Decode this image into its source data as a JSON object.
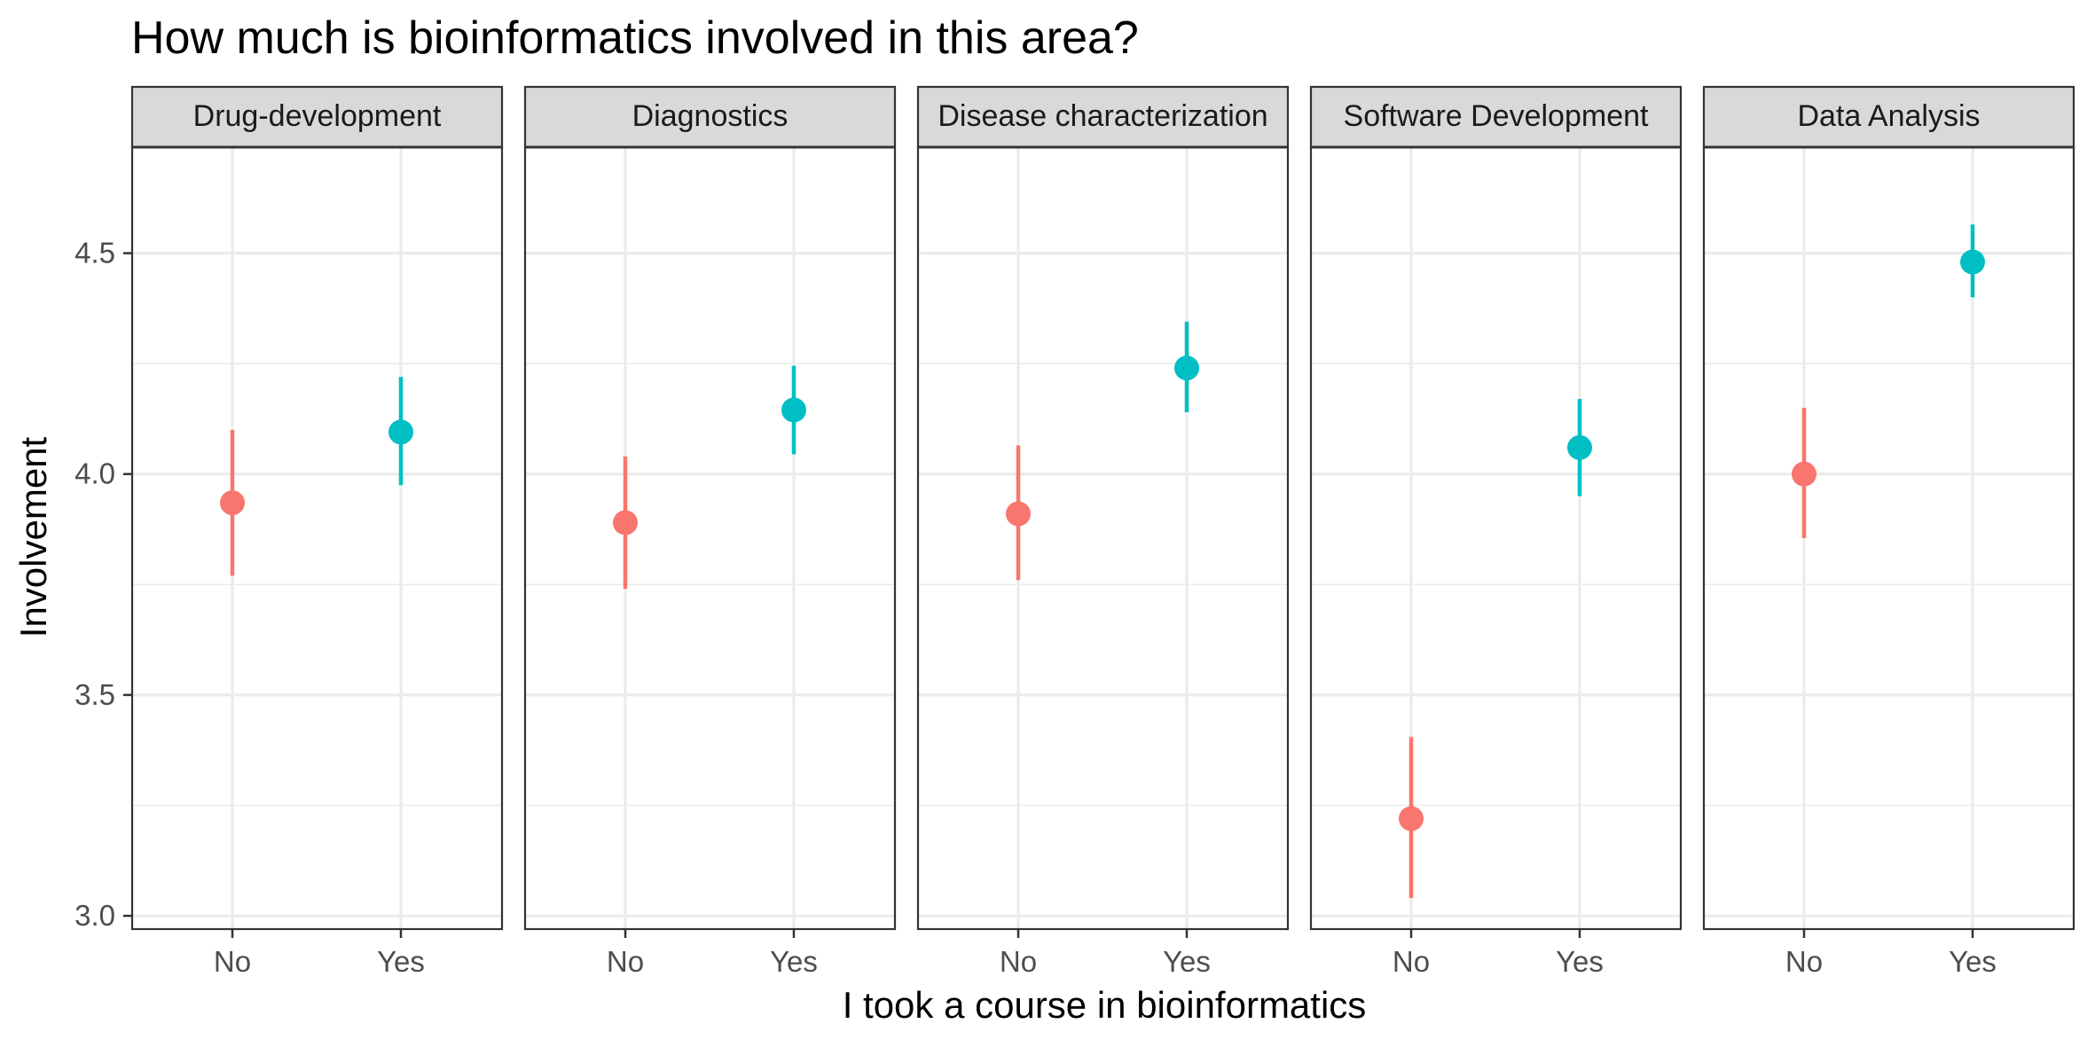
{
  "chart_data": {
    "type": "scatter",
    "title": "How much is bioinformatics involved in this area?",
    "xlabel": "I took a course in bioinformatics",
    "ylabel": "Involvement",
    "categories": [
      "No",
      "Yes"
    ],
    "ylim": [
      2.97,
      4.74
    ],
    "y_ticks": [
      3.0,
      3.5,
      4.0,
      4.5
    ],
    "y_tick_labels": [
      "3.0",
      "3.5",
      "4.0",
      "4.5"
    ],
    "y_minor_ticks": [
      3.25,
      3.75,
      4.25
    ],
    "grid": true,
    "colors": {
      "No": "#f8766d",
      "Yes": "#00bfc4"
    },
    "panels": [
      {
        "name": "Drug-development",
        "points": [
          {
            "x": "No",
            "y": 3.935,
            "ymin": 3.77,
            "ymax": 4.1
          },
          {
            "x": "Yes",
            "y": 4.095,
            "ymin": 3.975,
            "ymax": 4.22
          }
        ]
      },
      {
        "name": "Diagnostics",
        "points": [
          {
            "x": "No",
            "y": 3.89,
            "ymin": 3.74,
            "ymax": 4.04
          },
          {
            "x": "Yes",
            "y": 4.145,
            "ymin": 4.045,
            "ymax": 4.245
          }
        ]
      },
      {
        "name": "Disease characterization",
        "points": [
          {
            "x": "No",
            "y": 3.91,
            "ymin": 3.76,
            "ymax": 4.065
          },
          {
            "x": "Yes",
            "y": 4.24,
            "ymin": 4.14,
            "ymax": 4.345
          }
        ]
      },
      {
        "name": "Software Development",
        "points": [
          {
            "x": "No",
            "y": 3.22,
            "ymin": 3.04,
            "ymax": 3.405
          },
          {
            "x": "Yes",
            "y": 4.06,
            "ymin": 3.95,
            "ymax": 4.17
          }
        ]
      },
      {
        "name": "Data Analysis",
        "points": [
          {
            "x": "No",
            "y": 4.0,
            "ymin": 3.855,
            "ymax": 4.15
          },
          {
            "x": "Yes",
            "y": 4.48,
            "ymin": 4.4,
            "ymax": 4.565
          }
        ]
      }
    ]
  }
}
